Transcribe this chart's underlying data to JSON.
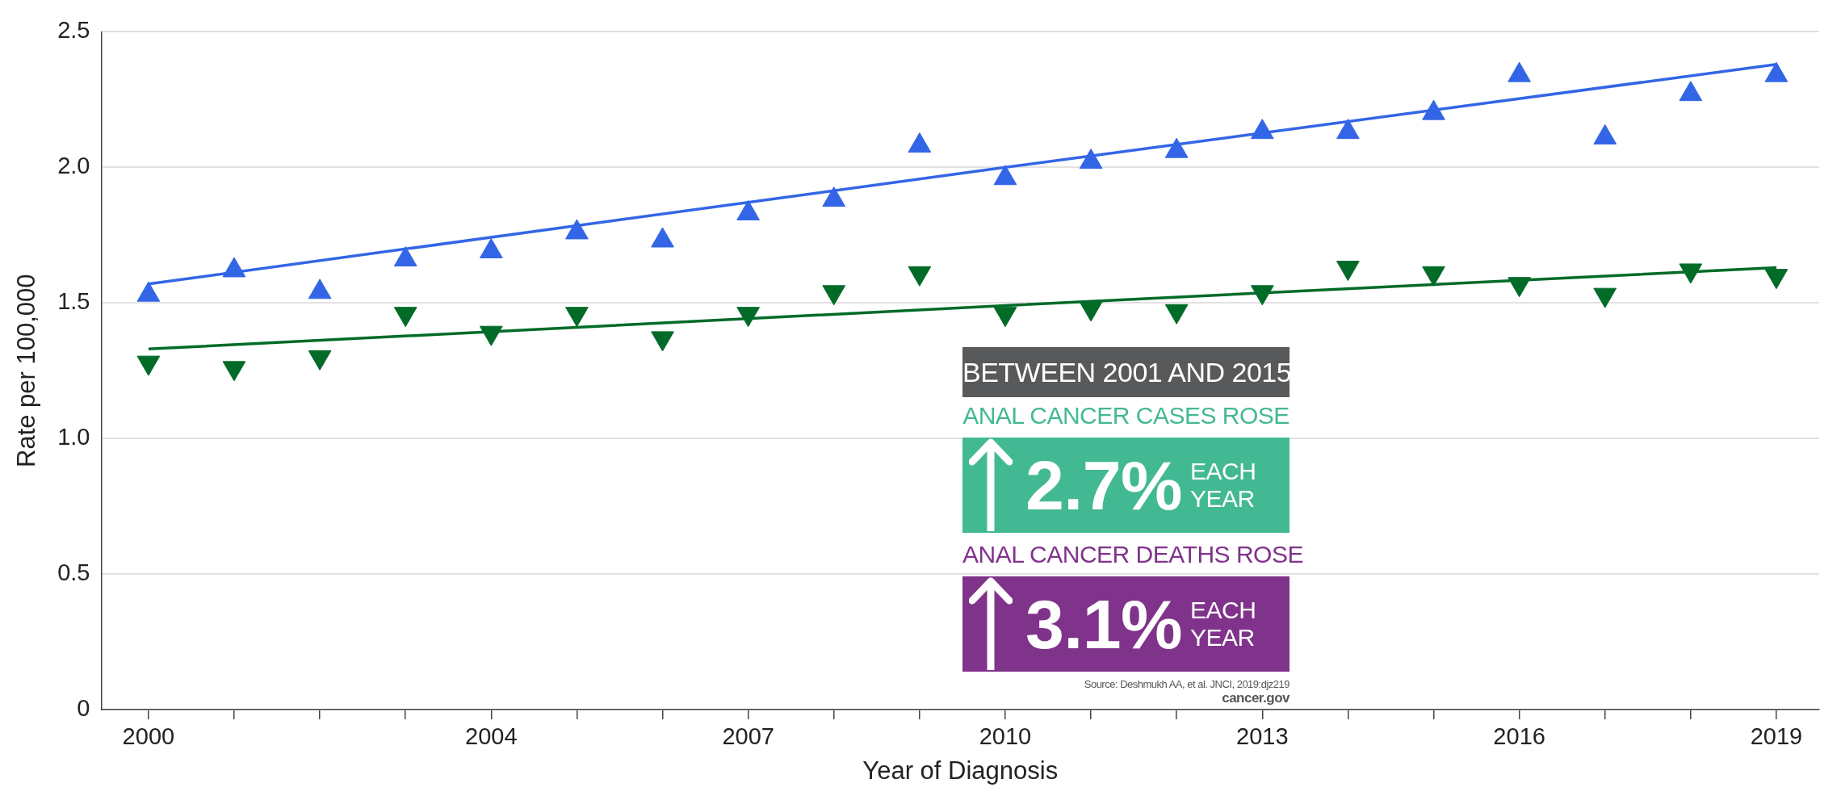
{
  "chart_data": {
    "type": "scatter",
    "xlabel": "Year of Diagnosis",
    "ylabel": "Rate per 100,000",
    "x": [
      2000,
      2001,
      2002,
      2003,
      2004,
      2005,
      2006,
      2007,
      2008,
      2009,
      2010,
      2011,
      2012,
      2013,
      2014,
      2015,
      2016,
      2017,
      2018,
      2019
    ],
    "series": [
      {
        "color": "#3366e6",
        "marker": "triangle",
        "values": [
          1.53,
          1.62,
          1.54,
          1.66,
          1.69,
          1.76,
          1.73,
          1.83,
          1.88,
          2.08,
          1.96,
          2.02,
          2.06,
          2.13,
          2.13,
          2.2,
          2.34,
          2.11,
          2.27,
          2.34
        ]
      },
      {
        "color": "#036b28",
        "marker": "triangle",
        "values": [
          1.28,
          1.26,
          1.3,
          1.46,
          1.39,
          1.46,
          1.37,
          1.46,
          1.54,
          1.61,
          1.46,
          1.48,
          1.47,
          1.54,
          1.63,
          1.61,
          1.57,
          1.53,
          1.62,
          1.6
        ]
      },
      {
        "type": "line",
        "color": "#3366e6",
        "marker": "none",
        "x": [
          2000,
          2010,
          2019
        ],
        "values": [
          1.57,
          2.0,
          2.38
        ]
      },
      {
        "type": "line",
        "color": "#036b28",
        "marker": "none",
        "x": [
          2000,
          2010,
          2019
        ],
        "values": [
          1.33,
          1.49,
          1.63
        ]
      }
    ],
    "xlim": [
      1999.45,
      2019.5
    ],
    "xticks": [
      2000,
      {
        "value": 2001,
        "label": null
      },
      {
        "value": 2002,
        "label": null
      },
      {
        "value": 2003,
        "label": null
      },
      2004,
      {
        "value": 2005,
        "label": null
      },
      {
        "value": 2006,
        "label": null
      },
      2007,
      {
        "value": 2008,
        "label": null
      },
      {
        "value": 2009,
        "label": null
      },
      2010,
      {
        "value": 2011,
        "label": null
      },
      {
        "value": 2012,
        "label": null
      },
      2013,
      {
        "value": 2014,
        "label": null
      },
      {
        "value": 2015,
        "label": null
      },
      2016,
      {
        "value": 2017,
        "label": null
      },
      {
        "value": 2018,
        "label": null
      },
      2019
    ],
    "ylim": [
      0,
      2.5
    ],
    "yticks": [
      0,
      0.5,
      {
        "value": 1,
        "label": "1.0"
      },
      1.5,
      {
        "value": 2,
        "label": "2.0"
      },
      2.5
    ],
    "grid": "y",
    "legend": false,
    "annotations": [
      "BETWEEN 2001 AND 2015",
      "ANAL CANCER CASES ROSE",
      "2.7%",
      "EACH YEAR",
      "ANAL CANCER DEATHS ROSE",
      "3.1%",
      "EACH YEAR",
      "Source: Deshmukh AA, et al. JNCI, 2019:djz219",
      "cancer.gov"
    ]
  }
}
